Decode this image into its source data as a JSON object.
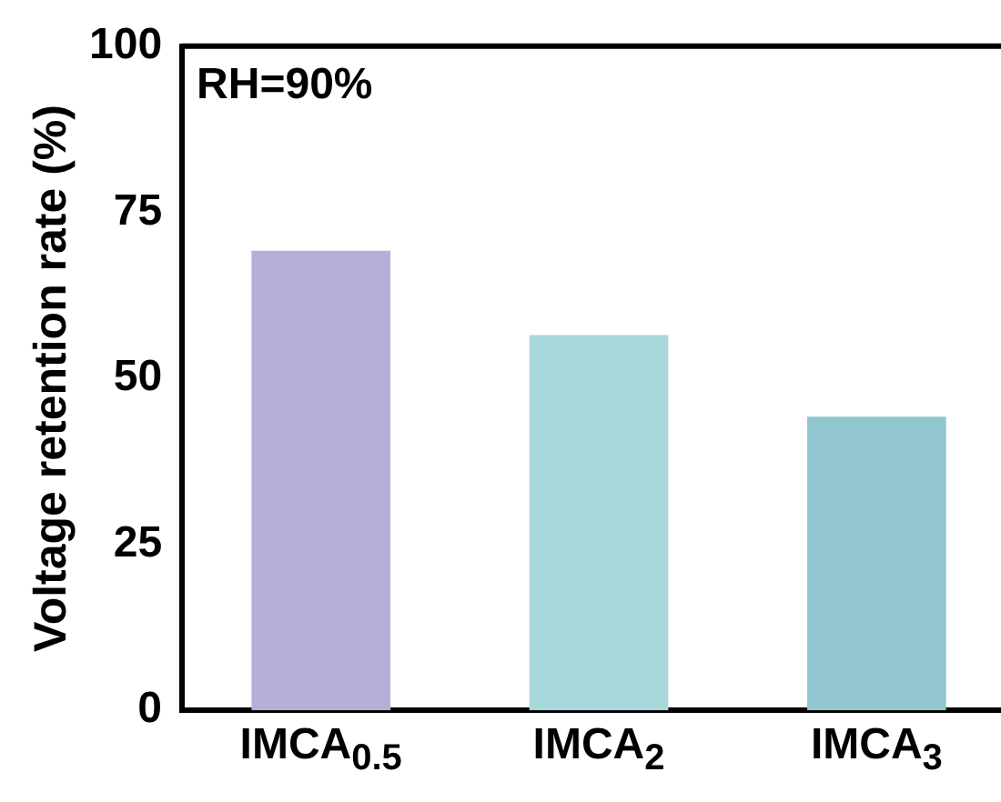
{
  "chart_data": {
    "type": "bar",
    "ylabel": "Voltage retention rate (%)",
    "annotations": [
      "RH=90%"
    ],
    "categories": [
      "IMCA$_{0.5}$",
      "IMCA$_{2}$",
      "IMCA$_{3}$"
    ],
    "values": [
      69.2,
      56.5,
      44.2
    ],
    "colors": [
      "#b6aed8",
      "#a8d8dc",
      "#92c6d0"
    ],
    "ylim": [
      0,
      100
    ],
    "yticks": [
      0,
      25,
      50,
      75,
      100
    ],
    "grid": false,
    "legend": false
  }
}
